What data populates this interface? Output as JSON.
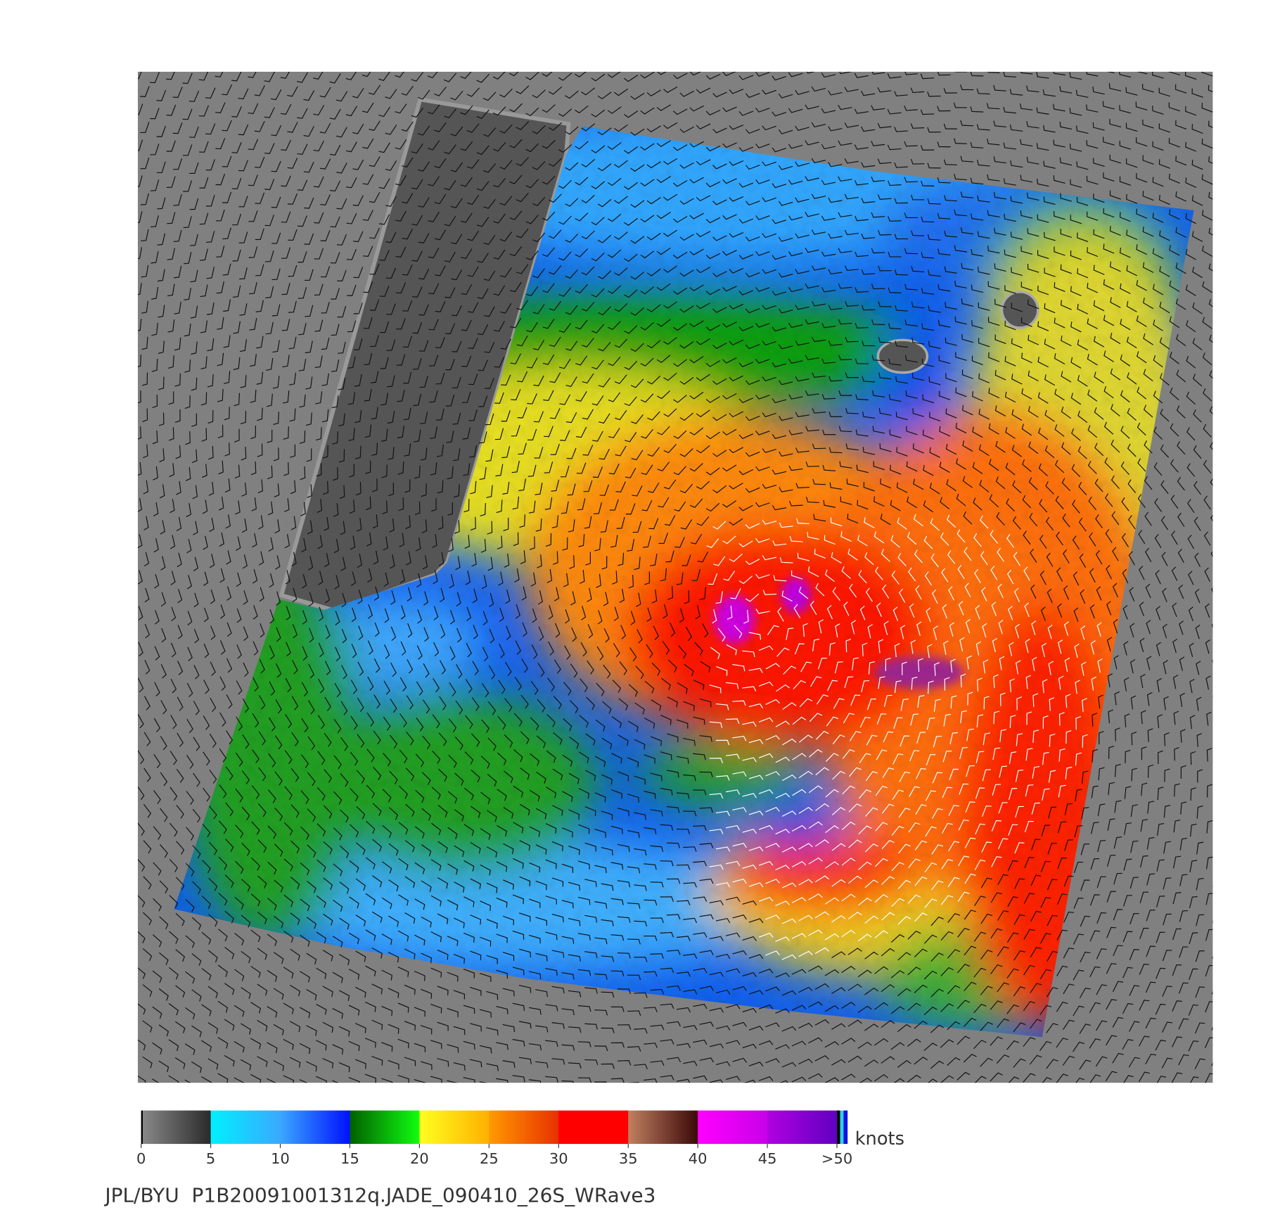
{
  "colorbar": {
    "ticks": [
      0,
      5,
      10,
      15,
      20,
      25,
      30,
      35,
      40,
      45,
      {
        "value": 50,
        "label": ">50"
      }
    ],
    "unit": "knots",
    "colors": [
      [
        "#8a8a8a",
        "#2a2a2a"
      ],
      [
        "#00f0ff",
        "#3aa8ff"
      ],
      [
        "#3aa8ff",
        "#0010ff"
      ],
      [
        "#006000",
        "#10ff10"
      ],
      [
        "#ffff20",
        "#ffb000"
      ],
      [
        "#ff9a00",
        "#e83000"
      ],
      [
        "#ff0000",
        "#ff0000"
      ],
      [
        "#c08060",
        "#3a0808"
      ],
      [
        "#ff00ff",
        "#c800e8"
      ],
      [
        "#b000e0",
        "#6000c0"
      ]
    ]
  },
  "caption": "JPL/BYU  P1B20091001312q.JADE_090410_26S_WRave3"
}
